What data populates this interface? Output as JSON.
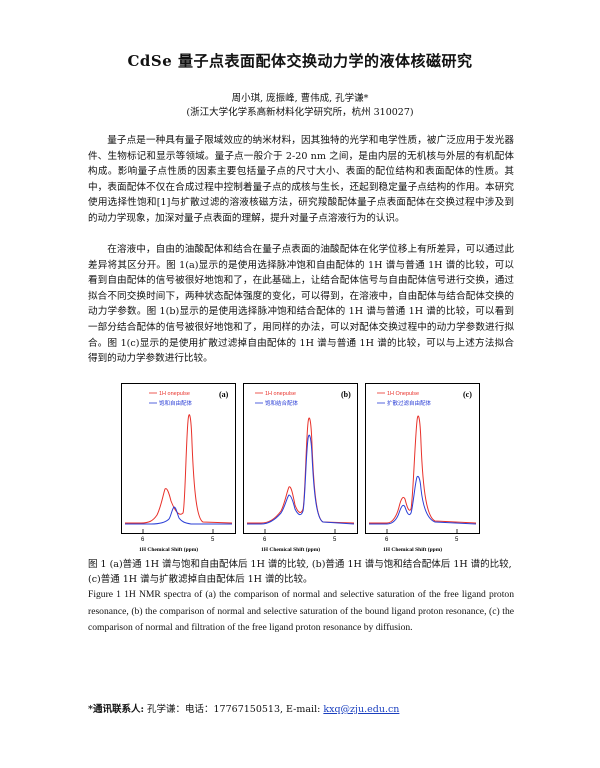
{
  "title": "CdSe 量子点表面配体交换动力学的液体核磁研究",
  "authors": "周小琪, 庞振峰, 曹伟成, 孔学谦*",
  "affiliation": "(浙江大学化学系高新材料化学研究所，杭州 310027)",
  "paragraph1": "量子点是一种具有量子限域效应的纳米材料，因其独特的光学和电学性质，被广泛应用于发光器件、生物标记和显示等领域。量子点一般介于 2-20 nm 之间，是由内层的无机核与外层的有机配体构成。影响量子点性质的因素主要包括量子点的尺寸大小、表面的配位结构和表面配体的性质。其中，表面配体不仅在合成过程中控制着量子点的成核与生长，还起到稳定量子点结构的作用。本研究使用选择性饱和[1]与扩散过滤的溶液核磁方法，研究羧酸配体量子点表面配体在交换过程中涉及到的动力学现象，加深对量子点表面的理解，提升对量子点溶液行为的认识。",
  "paragraph2": "在溶液中，自由的油酸配体和结合在量子点表面的油酸配体在化学位移上有所差异，可以通过此差异将其区分开。图 1(a)显示的是使用选择脉冲饱和自由配体的 1H 谱与普通 1H 谱的比较，可以看到自由配体的信号被很好地饱和了，在此基础上，让结合配体信号与自由配体信号进行交换，通过拟合不同交换时间下，两种状态配体强度的变化，可以得到，在溶液中，自由配体与结合配体交换的动力学参数。图 1(b)显示的是使用选择脉冲饱和结合配体的 1H 谱与普通 1H 谱的比较，可以看到一部分结合配体的信号被很好地饱和了，用同样的办法，可以对配体交换过程中的动力学参数进行拟合。图 1(c)显示的是使用扩散过滤掉自由配体的 1H 谱与普通 1H 谱的比较，可以与上述方法拟合得到的动力学参数进行比较。",
  "figure": {
    "panels": [
      {
        "tag": "(a)",
        "legend1": "1H onepulse",
        "legend2": "饱和自由配体",
        "xlabel": "1H Chemical Shift (ppm)",
        "tick_left": "6",
        "tick_right": "5"
      },
      {
        "tag": "(b)",
        "legend1": "1H onepulse",
        "legend2": "饱和结合配体",
        "xlabel": "1H Chemical Shift (ppm)",
        "tick_left": "6",
        "tick_right": "5"
      },
      {
        "tag": "(c)",
        "legend1": "1H Onepulse",
        "legend2": "扩散过滤自由配体",
        "xlabel": "1H Chemical Shift (ppm)",
        "tick_left": "6",
        "tick_right": "5"
      }
    ],
    "colors": {
      "normal": "#e8312a",
      "selective": "#2b3fd6"
    }
  },
  "caption_cn": "图 1 (a)普通 1H 谱与饱和自由配体后 1H 谱的比较, (b)普通 1H 谱与饱和结合配体后 1H 谱的比较, (c)普通 1H 谱与扩散滤掉自由配体后 1H 谱的比较。",
  "caption_en": "Figure 1 1H NMR spectra of (a) the comparison of normal and selective saturation of the free ligand proton resonance, (b) the comparison of normal and selective saturation of the bound ligand proton resonance, (c) the comparison of normal and filtration of the free ligand proton resonance by diffusion.",
  "contact": {
    "label": "*通讯联系人:",
    "text": "孔学谦：电话：17767150513, E-mail: ",
    "email": "kxq@zju.edu.cn"
  }
}
